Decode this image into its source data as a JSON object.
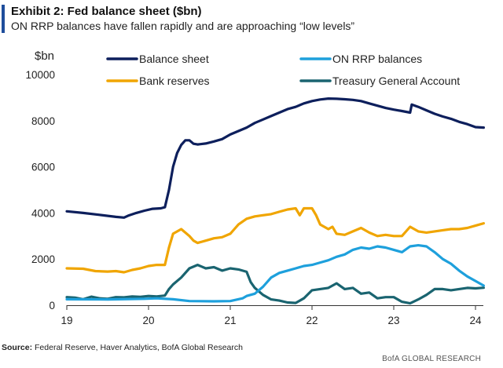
{
  "header": {
    "title": "Exhibit 2: Fed balance sheet ($bn)",
    "subtitle": "ON RRP balances have fallen rapidly and are approaching “low levels”"
  },
  "footer": {
    "source_label": "Source:",
    "source_text": " Federal Reserve, Haver Analytics, BofA Global Research",
    "brand": "BofA GLOBAL RESEARCH"
  },
  "chart_data": {
    "type": "line",
    "title": "Exhibit 2: Fed balance sheet ($bn)",
    "subtitle": "ON RRP balances have fallen rapidly and are approaching “low levels”",
    "ylabel": "$bn",
    "xlabel": "",
    "ylim": [
      0,
      10000
    ],
    "xlim": [
      19,
      24.1
    ],
    "yticks": [
      0,
      2000,
      4000,
      6000,
      8000,
      10000
    ],
    "xticks": [
      19,
      20,
      21,
      22,
      23,
      24
    ],
    "xtick_labels": [
      "19",
      "20",
      "21",
      "22",
      "23",
      "24"
    ],
    "grid": false,
    "legend": "top",
    "series": [
      {
        "name": "Balance sheet",
        "color": "#0d1f5c",
        "points": [
          [
            19.0,
            4070
          ],
          [
            19.2,
            4000
          ],
          [
            19.4,
            3920
          ],
          [
            19.6,
            3830
          ],
          [
            19.7,
            3800
          ],
          [
            19.75,
            3880
          ],
          [
            19.85,
            4000
          ],
          [
            19.95,
            4100
          ],
          [
            20.05,
            4180
          ],
          [
            20.15,
            4200
          ],
          [
            20.2,
            4250
          ],
          [
            20.25,
            5000
          ],
          [
            20.3,
            6000
          ],
          [
            20.35,
            6600
          ],
          [
            20.4,
            6950
          ],
          [
            20.45,
            7150
          ],
          [
            20.5,
            7150
          ],
          [
            20.55,
            7000
          ],
          [
            20.6,
            6970
          ],
          [
            20.7,
            7010
          ],
          [
            20.8,
            7100
          ],
          [
            20.9,
            7200
          ],
          [
            21.0,
            7400
          ],
          [
            21.1,
            7550
          ],
          [
            21.2,
            7700
          ],
          [
            21.3,
            7900
          ],
          [
            21.4,
            8050
          ],
          [
            21.5,
            8200
          ],
          [
            21.6,
            8350
          ],
          [
            21.7,
            8500
          ],
          [
            21.8,
            8600
          ],
          [
            21.9,
            8750
          ],
          [
            22.0,
            8850
          ],
          [
            22.1,
            8920
          ],
          [
            22.2,
            8960
          ],
          [
            22.3,
            8950
          ],
          [
            22.4,
            8930
          ],
          [
            22.5,
            8900
          ],
          [
            22.6,
            8850
          ],
          [
            22.7,
            8750
          ],
          [
            22.8,
            8650
          ],
          [
            22.9,
            8550
          ],
          [
            23.0,
            8480
          ],
          [
            23.1,
            8420
          ],
          [
            23.2,
            8350
          ],
          [
            23.22,
            8700
          ],
          [
            23.3,
            8600
          ],
          [
            23.4,
            8450
          ],
          [
            23.5,
            8300
          ],
          [
            23.6,
            8180
          ],
          [
            23.7,
            8080
          ],
          [
            23.8,
            7950
          ],
          [
            23.9,
            7850
          ],
          [
            24.0,
            7720
          ],
          [
            24.1,
            7700
          ]
        ]
      },
      {
        "name": "ON RRP balances",
        "color": "#1ea0dc",
        "points": [
          [
            19.0,
            260
          ],
          [
            19.5,
            250
          ],
          [
            19.95,
            280
          ],
          [
            20.1,
            300
          ],
          [
            20.3,
            260
          ],
          [
            20.5,
            180
          ],
          [
            20.8,
            170
          ],
          [
            21.0,
            180
          ],
          [
            21.15,
            300
          ],
          [
            21.2,
            400
          ],
          [
            21.3,
            500
          ],
          [
            21.4,
            800
          ],
          [
            21.5,
            1200
          ],
          [
            21.6,
            1400
          ],
          [
            21.7,
            1500
          ],
          [
            21.8,
            1600
          ],
          [
            21.9,
            1700
          ],
          [
            22.0,
            1750
          ],
          [
            22.1,
            1850
          ],
          [
            22.2,
            1950
          ],
          [
            22.3,
            2100
          ],
          [
            22.4,
            2200
          ],
          [
            22.5,
            2400
          ],
          [
            22.6,
            2500
          ],
          [
            22.7,
            2450
          ],
          [
            22.8,
            2550
          ],
          [
            22.9,
            2500
          ],
          [
            23.0,
            2400
          ],
          [
            23.1,
            2300
          ],
          [
            23.2,
            2550
          ],
          [
            23.3,
            2600
          ],
          [
            23.4,
            2550
          ],
          [
            23.5,
            2300
          ],
          [
            23.6,
            2000
          ],
          [
            23.7,
            1800
          ],
          [
            23.8,
            1500
          ],
          [
            23.9,
            1250
          ],
          [
            24.0,
            1050
          ],
          [
            24.1,
            850
          ]
        ]
      },
      {
        "name": "Bank reserves",
        "color": "#f0a500",
        "points": [
          [
            19.0,
            1600
          ],
          [
            19.2,
            1580
          ],
          [
            19.35,
            1480
          ],
          [
            19.5,
            1460
          ],
          [
            19.6,
            1480
          ],
          [
            19.7,
            1430
          ],
          [
            19.8,
            1530
          ],
          [
            19.9,
            1600
          ],
          [
            20.0,
            1700
          ],
          [
            20.1,
            1750
          ],
          [
            20.2,
            1750
          ],
          [
            20.25,
            2500
          ],
          [
            20.3,
            3100
          ],
          [
            20.4,
            3300
          ],
          [
            20.5,
            3000
          ],
          [
            20.55,
            2800
          ],
          [
            20.6,
            2700
          ],
          [
            20.7,
            2800
          ],
          [
            20.8,
            2900
          ],
          [
            20.9,
            2950
          ],
          [
            21.0,
            3100
          ],
          [
            21.05,
            3300
          ],
          [
            21.1,
            3500
          ],
          [
            21.2,
            3750
          ],
          [
            21.3,
            3850
          ],
          [
            21.4,
            3900
          ],
          [
            21.5,
            3950
          ],
          [
            21.6,
            4050
          ],
          [
            21.7,
            4150
          ],
          [
            21.8,
            4200
          ],
          [
            21.85,
            3900
          ],
          [
            21.9,
            4200
          ],
          [
            22.0,
            4200
          ],
          [
            22.05,
            3900
          ],
          [
            22.1,
            3500
          ],
          [
            22.2,
            3300
          ],
          [
            22.25,
            3400
          ],
          [
            22.3,
            3100
          ],
          [
            22.4,
            3050
          ],
          [
            22.5,
            3200
          ],
          [
            22.6,
            3350
          ],
          [
            22.7,
            3150
          ],
          [
            22.8,
            3000
          ],
          [
            22.9,
            3050
          ],
          [
            23.0,
            3000
          ],
          [
            23.1,
            3000
          ],
          [
            23.2,
            3400
          ],
          [
            23.3,
            3200
          ],
          [
            23.4,
            3150
          ],
          [
            23.5,
            3200
          ],
          [
            23.6,
            3250
          ],
          [
            23.7,
            3300
          ],
          [
            23.8,
            3300
          ],
          [
            23.9,
            3350
          ],
          [
            24.0,
            3450
          ],
          [
            24.1,
            3550
          ]
        ]
      },
      {
        "name": "Treasury General Account",
        "color": "#1a6470",
        "points": [
          [
            19.0,
            350
          ],
          [
            19.1,
            330
          ],
          [
            19.2,
            260
          ],
          [
            19.3,
            370
          ],
          [
            19.4,
            300
          ],
          [
            19.5,
            280
          ],
          [
            19.6,
            350
          ],
          [
            19.7,
            340
          ],
          [
            19.8,
            380
          ],
          [
            19.9,
            360
          ],
          [
            20.0,
            400
          ],
          [
            20.1,
            380
          ],
          [
            20.2,
            420
          ],
          [
            20.25,
            700
          ],
          [
            20.3,
            900
          ],
          [
            20.4,
            1200
          ],
          [
            20.5,
            1600
          ],
          [
            20.6,
            1750
          ],
          [
            20.7,
            1600
          ],
          [
            20.8,
            1650
          ],
          [
            20.9,
            1500
          ],
          [
            21.0,
            1600
          ],
          [
            21.1,
            1550
          ],
          [
            21.2,
            1450
          ],
          [
            21.25,
            1000
          ],
          [
            21.3,
            750
          ],
          [
            21.4,
            450
          ],
          [
            21.5,
            250
          ],
          [
            21.6,
            200
          ],
          [
            21.7,
            120
          ],
          [
            21.8,
            100
          ],
          [
            21.9,
            300
          ],
          [
            22.0,
            650
          ],
          [
            22.1,
            700
          ],
          [
            22.2,
            750
          ],
          [
            22.3,
            950
          ],
          [
            22.4,
            700
          ],
          [
            22.5,
            750
          ],
          [
            22.6,
            500
          ],
          [
            22.7,
            550
          ],
          [
            22.8,
            300
          ],
          [
            22.9,
            350
          ],
          [
            23.0,
            350
          ],
          [
            23.1,
            150
          ],
          [
            23.2,
            80
          ],
          [
            23.3,
            250
          ],
          [
            23.4,
            450
          ],
          [
            23.5,
            700
          ],
          [
            23.6,
            700
          ],
          [
            23.7,
            650
          ],
          [
            23.8,
            700
          ],
          [
            23.9,
            750
          ],
          [
            24.0,
            730
          ],
          [
            24.1,
            760
          ]
        ]
      }
    ]
  }
}
